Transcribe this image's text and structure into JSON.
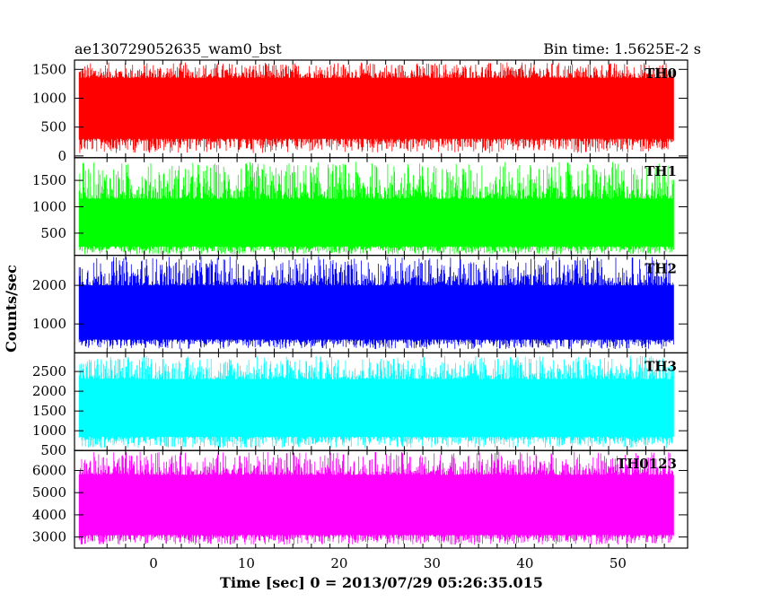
{
  "chart_data": {
    "type": "line",
    "title": "ae130729052635_wam0_bst",
    "subtitle": "Bin time: 1.5625E-2 s",
    "xlabel": "Time [sec] 0 = 2013/07/29 05:26:35.015",
    "ylabel": "Counts/sec",
    "xlim": [
      -8.5,
      57.5
    ],
    "data_x_range": [
      -8.0,
      56.0
    ],
    "x_ticks": [
      0,
      10,
      20,
      30,
      40,
      50
    ],
    "panels": [
      {
        "name": "TH0",
        "color": "#ff0000",
        "ylim": [
          -30,
          1660
        ],
        "y_ticks": [
          0,
          500,
          1000,
          1500
        ],
        "band_low": 300,
        "band_high": 1350,
        "min": 50,
        "max": 1620,
        "mean": 780
      },
      {
        "name": "TH1",
        "color": "#00ff00",
        "ylim": [
          80,
          1930
        ],
        "y_ticks": [
          500,
          1000,
          1500
        ],
        "band_low": 250,
        "band_high": 1150,
        "min": 100,
        "max": 1850,
        "mean": 700
      },
      {
        "name": "TH2",
        "color": "#0000ff",
        "ylim": [
          250,
          2780
        ],
        "y_ticks": [
          1000,
          2000
        ],
        "band_low": 600,
        "band_high": 2000,
        "min": 350,
        "max": 2750,
        "mean": 1300
      },
      {
        "name": "TH3",
        "color": "#00ffff",
        "ylim": [
          500,
          2970
        ],
        "y_ticks": [
          500,
          1000,
          1500,
          2000,
          2500
        ],
        "band_low": 850,
        "band_high": 2300,
        "min": 560,
        "max": 2900,
        "mean": 1550
      },
      {
        "name": "TH0123",
        "color": "#ff00ff",
        "ylim": [
          2500,
          6900
        ],
        "y_ticks": [
          3000,
          4000,
          5000,
          6000
        ],
        "band_low": 3100,
        "band_high": 5800,
        "min": 2650,
        "max": 6850,
        "mean": 4450
      }
    ],
    "grid": false
  }
}
